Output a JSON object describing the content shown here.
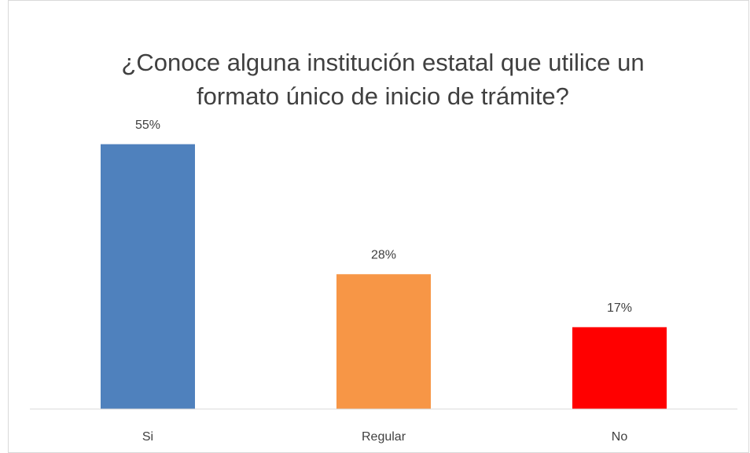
{
  "chart_data": {
    "type": "bar",
    "title": "¿Conoce alguna institución estatal que utilice un formato único de inicio de trámite?",
    "categories": [
      "Si",
      "Regular",
      "No"
    ],
    "values": [
      55,
      28,
      17
    ],
    "value_labels": [
      "55%",
      "28%",
      "17%"
    ],
    "colors": [
      "#4f81bd",
      "#f79646",
      "#ff0000"
    ],
    "ylim": [
      0,
      60
    ]
  }
}
